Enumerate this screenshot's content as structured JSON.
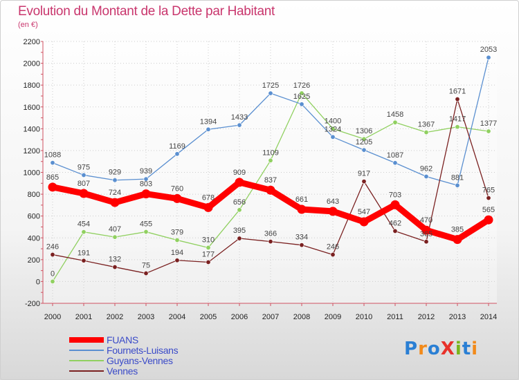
{
  "title": "Evolution du Montant de la Dette par Habitant",
  "subtitle": "(en €)",
  "logo": {
    "text": "ProXiti",
    "colors": [
      "#2a7fd4",
      "#f28a1a",
      "#2a7fd4",
      "#e8312a",
      "#7ab51d",
      "#2a7fd4",
      "#f28a1a"
    ]
  },
  "chart_data": {
    "type": "line",
    "x": [
      "2000",
      "2001",
      "2002",
      "2003",
      "2004",
      "2005",
      "2006",
      "2007",
      "2008",
      "2009",
      "2010",
      "2011",
      "2012",
      "2013",
      "2014"
    ],
    "ylim": [
      -200,
      2200
    ],
    "yticks": [
      -200,
      0,
      200,
      400,
      600,
      800,
      1000,
      1200,
      1400,
      1600,
      1800,
      2000,
      2200
    ],
    "grid": true,
    "legend_position": "bottom-left",
    "series": [
      {
        "name": "FUANS",
        "color": "#ff0000",
        "values": [
          865,
          807,
          724,
          803,
          760,
          678,
          909,
          837,
          661,
          643,
          547,
          703,
          470,
          385,
          565
        ]
      },
      {
        "name": "Fournets-Luisans",
        "color": "#5a8fd0",
        "values": [
          1088,
          975,
          929,
          939,
          1169,
          1394,
          1433,
          1725,
          1625,
          1324,
          1205,
          1087,
          962,
          881,
          2053
        ]
      },
      {
        "name": "Guyans-Vennes",
        "color": "#90d060",
        "values": [
          0,
          454,
          407,
          455,
          379,
          310,
          656,
          1109,
          1726,
          1400,
          1306,
          1458,
          1367,
          1417,
          1377
        ]
      },
      {
        "name": "Vennes",
        "color": "#7a2020",
        "values": [
          246,
          191,
          132,
          75,
          194,
          177,
          395,
          366,
          334,
          246,
          917,
          462,
          365,
          1671,
          765
        ]
      }
    ]
  }
}
